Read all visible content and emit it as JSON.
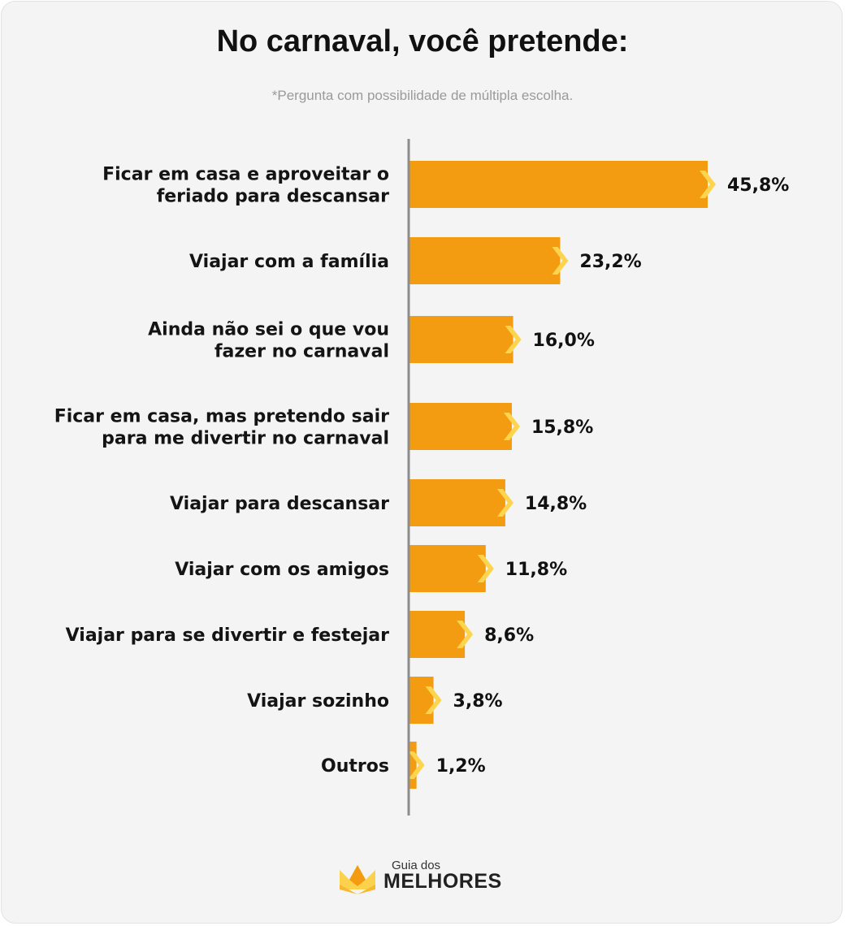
{
  "title": "No carnaval, você pretende:",
  "subtitle": "*Pergunta com possibilidade de múltipla escolha.",
  "brand": {
    "top": "Guia dos",
    "main": "MELHORES"
  },
  "colors": {
    "bar": "#f39c12",
    "chevron": "#fdd44e",
    "axis": "#8c8c8c"
  },
  "chart_data": {
    "type": "bar",
    "orientation": "horizontal",
    "title": "No carnaval, você pretende:",
    "categories": [
      [
        "Ficar em casa e aproveitar o",
        "feriado para descansar"
      ],
      [
        "Viajar com a família"
      ],
      [
        "Ainda não sei o que vou",
        "fazer no carnaval"
      ],
      [
        "Ficar em casa, mas pretendo sair",
        "para me divertir no carnaval"
      ],
      [
        "Viajar para descansar"
      ],
      [
        "Viajar com os amigos"
      ],
      [
        "Viajar para se divertir e festejar"
      ],
      [
        "Viajar sozinho"
      ],
      [
        "Outros"
      ]
    ],
    "values": [
      45.8,
      23.2,
      16.0,
      15.8,
      14.8,
      11.8,
      8.6,
      3.8,
      1.2
    ],
    "value_labels": [
      "45,8%",
      "23,2%",
      "16,0%",
      "15,8%",
      "14,8%",
      "11,8%",
      "8,6%",
      "3,8%",
      "1,2%"
    ],
    "unit": "%",
    "xlim": [
      0,
      50
    ]
  }
}
